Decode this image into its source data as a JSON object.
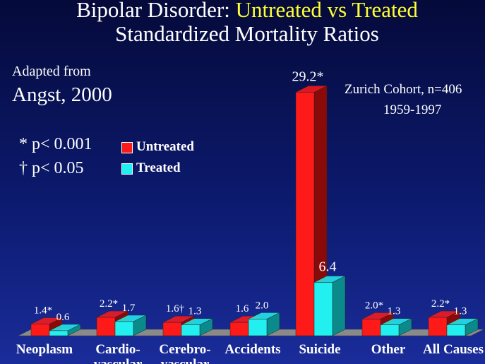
{
  "title": {
    "line1_prefix": "Bipolar Disorder: ",
    "line1_highlight": "Untreated vs Treated",
    "line2": "Standardized Mortality Ratios"
  },
  "source": {
    "line1": "Adapted from",
    "line2": "Angst, 2000"
  },
  "significance": {
    "line1": "* p< 0.001",
    "line2": "† p< 0.05"
  },
  "cohort": {
    "line1": "Zurich Cohort, n=406",
    "line2": "1959-1997"
  },
  "colors": {
    "untreated": "#ff1a1a",
    "untreated_side": "#8a0a0a",
    "treated": "#22f0f0",
    "treated_side": "#0a8a8a",
    "floor": "#8a8a8a"
  },
  "chart_data": {
    "type": "bar",
    "categories": [
      "Neoplasm",
      "Cardio-vascular",
      "Cerebro-vascular",
      "Accidents",
      "Suicide",
      "Other",
      "All Causes"
    ],
    "category_display": [
      [
        "Neoplasm"
      ],
      [
        "Cardio-",
        "vascular"
      ],
      [
        "Cerebro-",
        "vascular"
      ],
      [
        "Accidents"
      ],
      [
        "Suicide"
      ],
      [
        "Other"
      ],
      [
        "All Causes"
      ]
    ],
    "series": [
      {
        "name": "Untreated",
        "values": [
          1.4,
          2.2,
          1.6,
          1.6,
          29.2,
          2.0,
          2.2
        ],
        "labels": [
          "1.4*",
          "2.2*",
          "1.6†",
          "1.6",
          "29.2*",
          "2.0*",
          "2.2*"
        ]
      },
      {
        "name": "Treated",
        "values": [
          0.6,
          1.7,
          1.3,
          2.0,
          6.4,
          1.3,
          1.3
        ],
        "labels": [
          "0.6",
          "1.7",
          "1.3",
          "2.0",
          "6.4",
          "1.3",
          "1.3"
        ]
      }
    ],
    "ylim": [
      0,
      30
    ],
    "legend": "upper-left",
    "grid": false
  }
}
